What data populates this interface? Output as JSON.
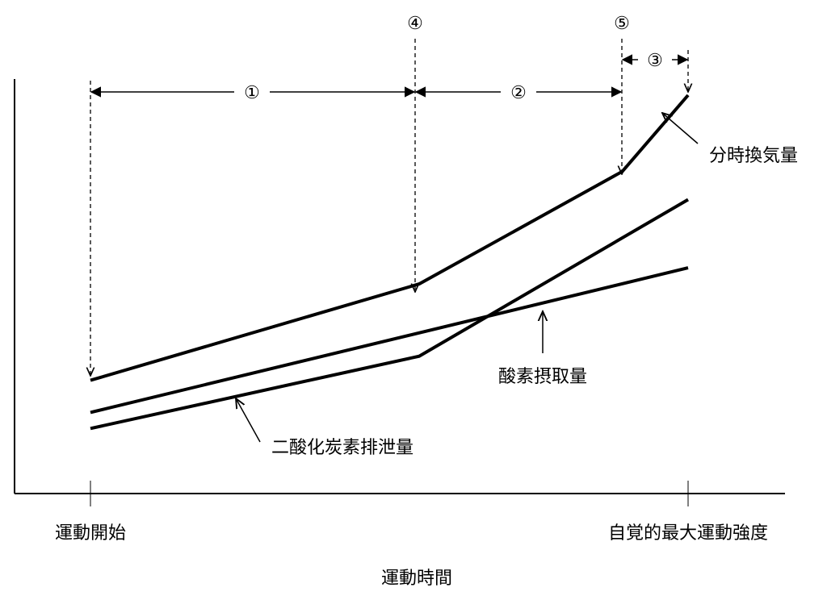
{
  "chart_data": {
    "type": "line",
    "title": "",
    "xlabel": "運動時間",
    "ylabel": "",
    "x_ticks": [
      "運動開始",
      "自覚的最大運動強度"
    ],
    "x_range": [
      0,
      1
    ],
    "y_range": [
      0,
      1
    ],
    "grid": false,
    "legend": "none",
    "series": [
      {
        "name": "分時換気量",
        "points": [
          [
            0,
            0.29
          ],
          [
            0.55,
            0.53
          ],
          [
            0.89,
            0.81
          ],
          [
            1,
            1
          ]
        ]
      },
      {
        "name": "酸素摂取量",
        "points": [
          [
            0,
            0.21
          ],
          [
            1,
            0.57
          ]
        ]
      },
      {
        "name": "二酸化炭素排泄量",
        "points": [
          [
            0,
            0.17
          ],
          [
            0.55,
            0.35
          ],
          [
            1,
            0.74
          ]
        ]
      }
    ],
    "annotations": {
      "phases": [
        {
          "label": "①",
          "from": 0,
          "to": 0.55
        },
        {
          "label": "②",
          "from": 0.55,
          "to": 0.89
        },
        {
          "label": "③",
          "from": 0.89,
          "to": 1
        }
      ],
      "markers": [
        {
          "label": "④",
          "x": 0.55,
          "series": "分時換気量"
        },
        {
          "label": "⑤",
          "x": 0.89,
          "series": "分時換気量"
        }
      ]
    }
  }
}
